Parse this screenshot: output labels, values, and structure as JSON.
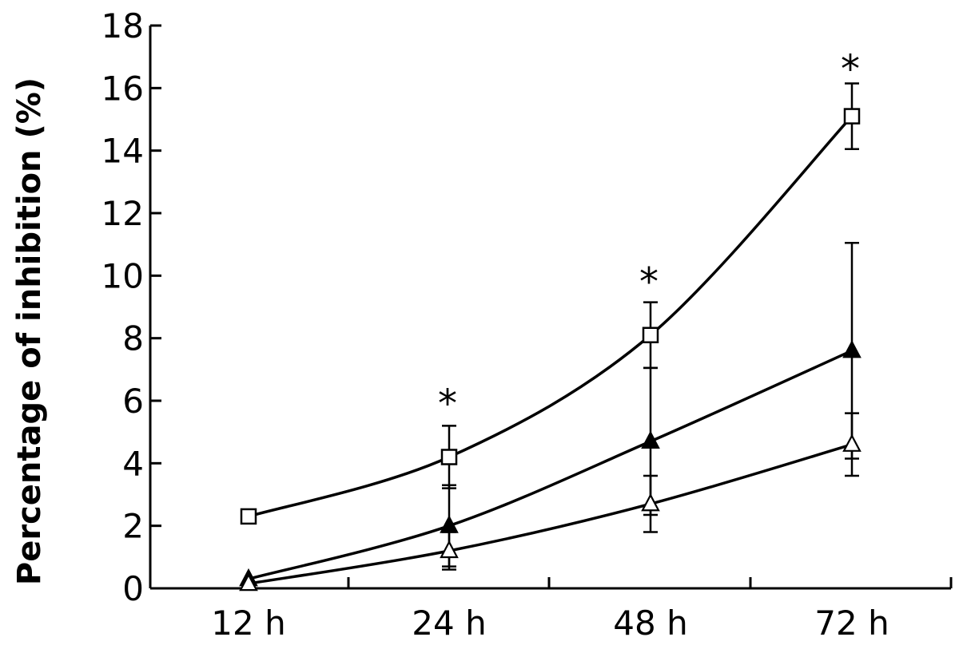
{
  "chart_data": {
    "type": "line",
    "title": "",
    "xlabel": "",
    "ylabel": "Percentage of inhibition (%)",
    "ylim": [
      0,
      18
    ],
    "yticks": [
      0,
      2,
      4,
      6,
      8,
      10,
      12,
      14,
      16,
      18
    ],
    "grid": false,
    "categories": [
      "12 h",
      "24 h",
      "48 h",
      "72 h"
    ],
    "series": [
      {
        "marker": "open-square",
        "values": [
          2.3,
          4.2,
          8.1,
          15.1
        ],
        "errors": [
          null,
          1.0,
          1.05,
          1.05
        ]
      },
      {
        "marker": "filled-triangle",
        "values": [
          0.3,
          2.0,
          4.7,
          7.6
        ],
        "errors": [
          null,
          1.3,
          2.35,
          3.45
        ]
      },
      {
        "marker": "open-triangle",
        "values": [
          0.15,
          1.2,
          2.7,
          4.6
        ],
        "errors": [
          null,
          0.6,
          0.9,
          1.0
        ]
      }
    ],
    "annotations": [
      {
        "text": "*",
        "category": "24 h",
        "y": 6.2
      },
      {
        "text": "*",
        "category": "48 h",
        "y": 10.1
      },
      {
        "text": "*",
        "category": "72 h",
        "y": 16.9
      }
    ]
  }
}
